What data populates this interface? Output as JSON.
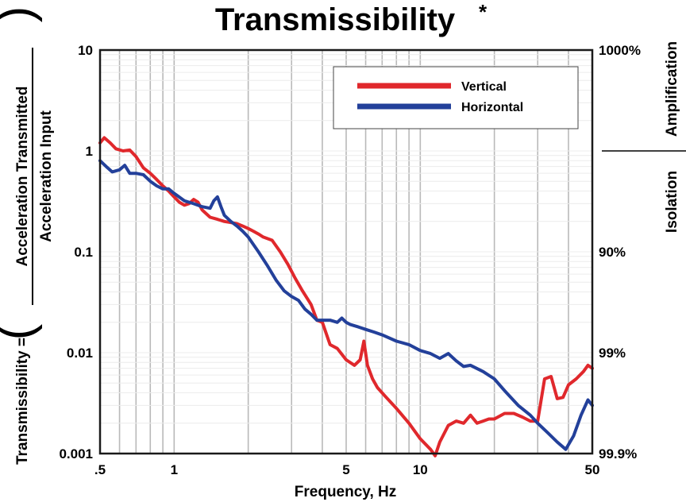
{
  "chart_data": {
    "type": "line",
    "title": "Transmissibility",
    "title_mark": "*",
    "xlabel": "Frequency, Hz",
    "ylabel": {
      "prefix": "Transmissibility =",
      "numerator": "Acceleration Transmitted",
      "denominator": "Acceleration Input"
    },
    "x_scale": "log",
    "y_scale": "log",
    "xlim": [
      0.5,
      50
    ],
    "ylim": [
      0.001,
      10
    ],
    "x_ticks": [
      {
        "value": 0.5,
        "label": ".5"
      },
      {
        "value": 1,
        "label": "1"
      },
      {
        "value": 5,
        "label": "5"
      },
      {
        "value": 10,
        "label": "10"
      },
      {
        "value": 50,
        "label": "50"
      }
    ],
    "y_ticks": [
      {
        "value": 10,
        "label": "10"
      },
      {
        "value": 1,
        "label": "1"
      },
      {
        "value": 0.1,
        "label": "0.1"
      },
      {
        "value": 0.01,
        "label": "0.01"
      },
      {
        "value": 0.001,
        "label": "0.001"
      }
    ],
    "right_axis": {
      "ticks": [
        {
          "value": 10,
          "label": "1000%"
        },
        {
          "value": 0.1,
          "label": "90%"
        },
        {
          "value": 0.01,
          "label": "99%"
        },
        {
          "value": 0.001,
          "label": "99.9%"
        }
      ],
      "upper_label": "Amplification",
      "lower_label": "Isolation",
      "divider_value": 1
    },
    "grid": {
      "vertical": true,
      "horizontal": true
    },
    "legend_position": "top-right",
    "series": [
      {
        "name": "Vertical",
        "color": "#e0282c",
        "x": [
          0.5,
          0.52,
          0.55,
          0.58,
          0.62,
          0.66,
          0.7,
          0.75,
          0.8,
          0.85,
          0.9,
          0.95,
          1.0,
          1.05,
          1.1,
          1.15,
          1.2,
          1.25,
          1.3,
          1.4,
          1.5,
          1.6,
          1.7,
          1.8,
          1.9,
          2.0,
          2.1,
          2.2,
          2.3,
          2.5,
          2.7,
          2.9,
          3.1,
          3.3,
          3.6,
          3.8,
          4.0,
          4.3,
          4.6,
          5.0,
          5.4,
          5.7,
          5.9,
          6.1,
          6.4,
          6.7,
          7.2,
          8.0,
          9.0,
          10.0,
          11.0,
          11.5,
          12.0,
          13.0,
          14.0,
          15.0,
          16.0,
          17.0,
          18.0,
          19.0,
          20.0,
          22.0,
          24.0,
          26.0,
          28.0,
          30.0,
          32.0,
          34.0,
          36.0,
          38.0,
          40.0,
          43.0,
          46.0,
          48.0,
          50.0
        ],
        "values": [
          1.2,
          1.35,
          1.2,
          1.05,
          1.0,
          1.02,
          0.88,
          0.68,
          0.6,
          0.52,
          0.45,
          0.4,
          0.35,
          0.31,
          0.29,
          0.3,
          0.33,
          0.31,
          0.26,
          0.22,
          0.21,
          0.2,
          0.195,
          0.19,
          0.18,
          0.17,
          0.16,
          0.15,
          0.14,
          0.13,
          0.1,
          0.075,
          0.055,
          0.042,
          0.03,
          0.021,
          0.02,
          0.012,
          0.011,
          0.0085,
          0.0075,
          0.0085,
          0.013,
          0.0075,
          0.0055,
          0.0045,
          0.0037,
          0.0028,
          0.002,
          0.0014,
          0.0011,
          0.00095,
          0.0013,
          0.0019,
          0.0021,
          0.002,
          0.0024,
          0.002,
          0.0021,
          0.0022,
          0.0022,
          0.0025,
          0.0025,
          0.0023,
          0.0021,
          0.0021,
          0.0055,
          0.0058,
          0.0035,
          0.0036,
          0.0048,
          0.0055,
          0.0065,
          0.0075,
          0.007
        ]
      },
      {
        "name": "Horizontal",
        "color": "#23409a",
        "x": [
          0.5,
          0.53,
          0.56,
          0.6,
          0.63,
          0.66,
          0.7,
          0.75,
          0.8,
          0.85,
          0.9,
          0.95,
          1.0,
          1.1,
          1.2,
          1.3,
          1.4,
          1.45,
          1.5,
          1.55,
          1.6,
          1.7,
          1.8,
          1.9,
          2.0,
          2.2,
          2.4,
          2.6,
          2.8,
          3.0,
          3.2,
          3.4,
          3.6,
          3.8,
          4.0,
          4.3,
          4.6,
          4.8,
          5.0,
          5.2,
          5.6,
          6.0,
          6.5,
          7.0,
          8.0,
          9.0,
          10.0,
          11.0,
          12.0,
          13.0,
          14.0,
          15.0,
          16.0,
          18.0,
          20.0,
          22.0,
          25.0,
          28.0,
          30.0,
          33.0,
          36.0,
          39.0,
          42.0,
          45.0,
          48.0,
          50.0
        ],
        "values": [
          0.8,
          0.7,
          0.62,
          0.65,
          0.72,
          0.6,
          0.6,
          0.58,
          0.5,
          0.45,
          0.42,
          0.42,
          0.38,
          0.32,
          0.3,
          0.28,
          0.27,
          0.32,
          0.35,
          0.28,
          0.23,
          0.2,
          0.18,
          0.16,
          0.14,
          0.1,
          0.072,
          0.052,
          0.041,
          0.036,
          0.033,
          0.027,
          0.024,
          0.021,
          0.021,
          0.021,
          0.02,
          0.022,
          0.02,
          0.019,
          0.018,
          0.017,
          0.016,
          0.015,
          0.013,
          0.012,
          0.0105,
          0.0098,
          0.0088,
          0.0098,
          0.0083,
          0.0073,
          0.0075,
          0.0065,
          0.0055,
          0.0042,
          0.003,
          0.0024,
          0.002,
          0.0016,
          0.0013,
          0.0011,
          0.0015,
          0.0024,
          0.0034,
          0.003
        ]
      }
    ]
  }
}
